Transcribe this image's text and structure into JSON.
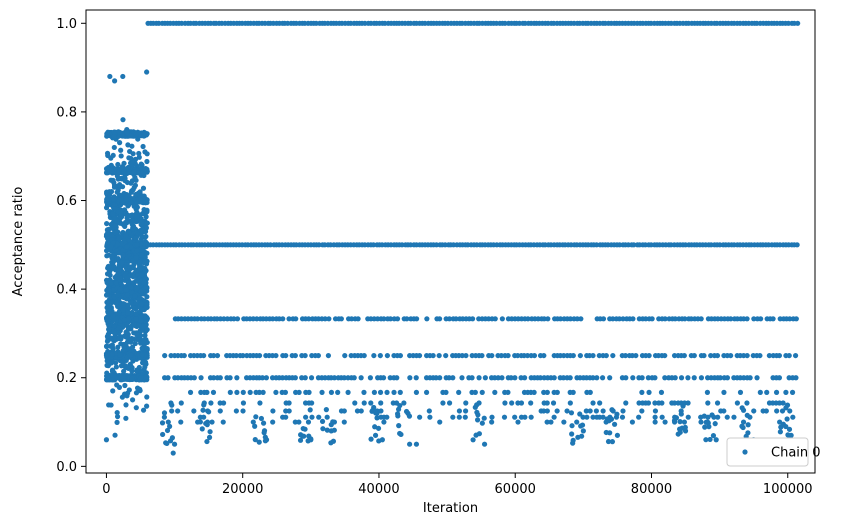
{
  "chart_data": {
    "type": "scatter",
    "title": "",
    "xlabel": "Iteration",
    "ylabel": "Acceptance ratio",
    "xlim": [
      -3000,
      104000
    ],
    "ylim": [
      -0.015,
      1.03
    ],
    "xticks": [
      0,
      20000,
      40000,
      60000,
      80000,
      100000
    ],
    "xtick_labels": [
      "0",
      "20000",
      "40000",
      "60000",
      "80000",
      "100000"
    ],
    "yticks": [
      0.0,
      0.2,
      0.4,
      0.6,
      0.8,
      1.0
    ],
    "ytick_labels": [
      "0.0",
      "0.2",
      "0.4",
      "0.6",
      "0.8",
      "1.0"
    ],
    "grid": false,
    "legend_position": "bottom-right",
    "series": [
      {
        "name": "Chain 0",
        "color": "#1f77b4",
        "marker": "circle",
        "segments": [
          {
            "x_range": [
              0,
              6000
            ],
            "description_values": "dense scatter",
            "y_min": 0.03,
            "y_max": 0.89,
            "bands": [
              0.5,
              0.333,
              0.25,
              0.2,
              0.6,
              0.667,
              0.4,
              0.75
            ]
          },
          {
            "x_range": [
              6000,
              101500
            ],
            "y": 1.0
          },
          {
            "x_range": [
              6000,
              101500
            ],
            "y": 0.5
          },
          {
            "x_range": [
              10000,
              101500
            ],
            "y": 0.333
          },
          {
            "x_range": [
              8500,
              101500
            ],
            "y": 0.25
          },
          {
            "x_range": [
              8500,
              101500
            ],
            "y": 0.2
          },
          {
            "x_range": [
              8500,
              101500
            ],
            "y": 0.167
          },
          {
            "x_range": [
              8500,
              101500
            ],
            "y": 0.143
          },
          {
            "x_range": [
              8500,
              101500
            ],
            "y": 0.125
          },
          {
            "x_range": [
              8500,
              101500
            ],
            "y": 0.111
          },
          {
            "x_range": [
              8500,
              101500
            ],
            "y": 0.1
          }
        ],
        "sample_points": [
          [
            0,
            0.06
          ],
          [
            500,
            0.88
          ],
          [
            1200,
            0.87
          ],
          [
            2400,
            0.88
          ],
          [
            5900,
            0.89
          ],
          [
            9800,
            0.03
          ],
          [
            10000,
            0.05
          ],
          [
            15500,
            0.1
          ],
          [
            23500,
            0.06
          ],
          [
            30000,
            0.06
          ],
          [
            33000,
            0.08
          ],
          [
            39500,
            0.07
          ],
          [
            40500,
            0.06
          ],
          [
            44500,
            0.05
          ],
          [
            45500,
            0.05
          ],
          [
            55500,
            0.05
          ],
          [
            70000,
            0.08
          ],
          [
            75000,
            0.07
          ],
          [
            85000,
            0.08
          ],
          [
            89500,
            0.06
          ],
          [
            95000,
            0.06
          ],
          [
            100500,
            0.07
          ]
        ]
      }
    ]
  }
}
